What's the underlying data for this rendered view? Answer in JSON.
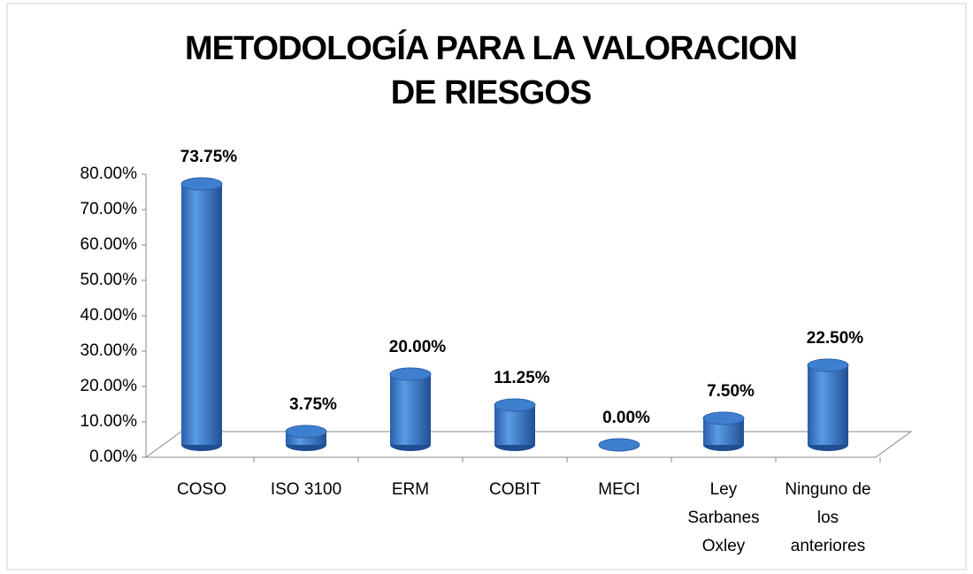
{
  "chart_data": {
    "type": "bar",
    "title": "METODOLOGÍA PARA LA VALORACION DE RIESGOS",
    "categories": [
      "COSO",
      "ISO 3100",
      "ERM",
      "COBIT",
      "MECI",
      "Ley Sarbanes Oxley",
      "Ninguno de los anteriores"
    ],
    "values": [
      73.75,
      3.75,
      20,
      11.25,
      0,
      7.5,
      22.5
    ],
    "value_labels": [
      "73.75%",
      "3.75%",
      "20.00%",
      "11.25%",
      "0.00%",
      "7.50%",
      "22.50%"
    ],
    "color": "#3f7fcf",
    "ylim": [
      0,
      80
    ],
    "yticks": [
      {
        "value": 0,
        "label": "0.00%"
      },
      {
        "value": 10,
        "label": "10.00%"
      },
      {
        "value": 20,
        "label": "20.00%"
      },
      {
        "value": 30,
        "label": "30.00%"
      },
      {
        "value": 40,
        "label": "40.00%"
      },
      {
        "value": 50,
        "label": "50.00%"
      },
      {
        "value": 60,
        "label": "60.00%"
      },
      {
        "value": 70,
        "label": "70.00%"
      },
      {
        "value": 80,
        "label": "80.00%"
      }
    ]
  }
}
